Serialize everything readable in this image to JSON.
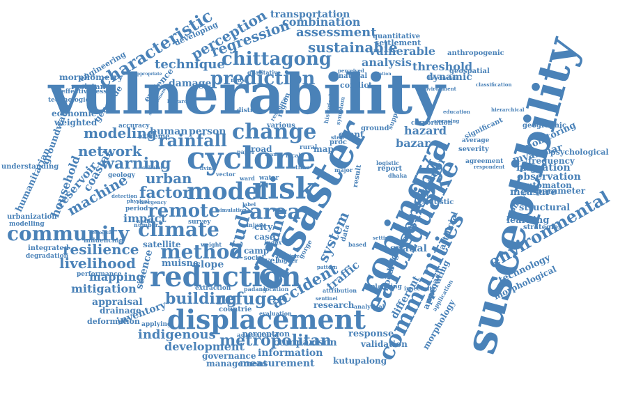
{
  "color": "#4a82b8",
  "background": "#ffffff",
  "words": [
    "vulnerability",
    "susceptibility",
    "disaster",
    "rohingya",
    "earthquake",
    "cyclone",
    "risk",
    "model",
    "displacement",
    "reduction",
    "communities",
    "environmental",
    "prediction",
    "chittagong",
    "change",
    "community",
    "climate",
    "method",
    "area",
    "remote",
    "sensing",
    "rainfall",
    "characteristic",
    "modeling",
    "network",
    "warning",
    "urban",
    "factor",
    "study",
    "land",
    "refugee",
    "accident",
    "building",
    "system",
    "resilience",
    "livelihood",
    "metropolitan",
    "indigenous",
    "development",
    "regression",
    "perception",
    "sustainable",
    "technique",
    "vulnerable",
    "assessment",
    "combination",
    "transportation",
    "threshold",
    "analysis",
    "observation",
    "migration",
    "measure",
    "mapping",
    "mitigation",
    "appraisal",
    "inventory",
    "drainage",
    "deformation",
    "comparison",
    "information",
    "measurement",
    "governance",
    "management",
    "response",
    "validation",
    "kutupalong",
    "perceptron",
    "coastal",
    "household",
    "machine",
    "reservoir",
    "impact",
    "satellite",
    "slope",
    "muisne",
    "traffic",
    "ecuador",
    "bazar",
    "hazard",
    "dynamic",
    "technology",
    "morphological",
    "myanmar",
    "monitoring",
    "frequency",
    "automaton",
    "parameter",
    "structural",
    "learning",
    "strategies",
    "different",
    "approach",
    "operating",
    "morphology",
    "artificial",
    "spatial",
    "flooding",
    "cover",
    "neural",
    "event",
    "human",
    "person",
    "damage",
    "evidence",
    "engineering",
    "morphometry",
    "resistance",
    "economic",
    "technologies",
    "effectiveness",
    "groundwater",
    "humanitarian",
    "understanding",
    "urbanization",
    "modelling",
    "integrated",
    "degradation",
    "performance",
    "influencing",
    "science",
    "geology",
    "developing",
    "quantitative",
    "settlement",
    "anthropogenic",
    "geospatial",
    "conflict",
    "natural",
    "road",
    "map",
    "city",
    "case",
    "camp",
    "level",
    "countrie",
    "extraction",
    "padang",
    "location",
    "research",
    "attribution",
    "genocide",
    "weighted",
    "accuracy",
    "extreme",
    "psychological",
    "geographic",
    "significant",
    "average",
    "severity",
    "agreement",
    "respondent",
    "context",
    "statistic",
    "planning",
    "insecurity",
    "analytical",
    "application",
    "ground",
    "support",
    "various",
    "rural",
    "proc",
    "step",
    "corporation",
    "assessing",
    "education",
    "hierarchical",
    "classification",
    "intermediate",
    "environment",
    "perceived",
    "qualitative",
    "district",
    "region",
    "historical",
    "symptom",
    "resource",
    "multiple",
    "pattern",
    "higher",
    "social",
    "index",
    "based",
    "setting",
    "data",
    "report",
    "result",
    "cellular",
    "survey",
    "weight",
    "health",
    "physical",
    "emergency",
    "hierarchy",
    "agricultural",
    "evaluation",
    "sentinel",
    "dhaka",
    "logistic",
    "most",
    "vector",
    "water",
    "ward",
    "paper",
    "living",
    "label",
    "local",
    "team",
    "time",
    "major",
    "period",
    "detection",
    "number",
    "geological",
    "applying",
    "simulation",
    "socioeconomic",
    "appropriate",
    "relation",
    "gorge",
    "injury"
  ]
}
